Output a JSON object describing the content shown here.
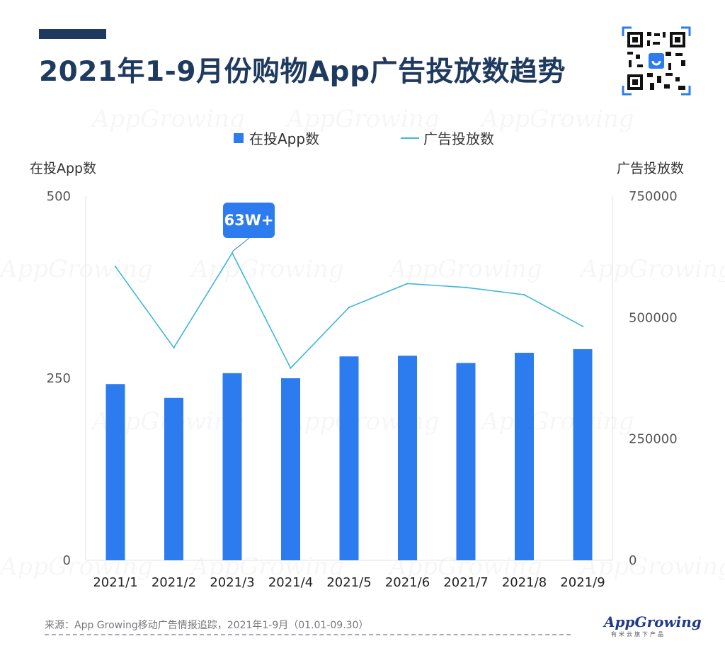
{
  "title": "2021年1-9月份购物App广告投放数趋势",
  "legend": {
    "bar_label": "在投App数",
    "line_label": "广告投放数"
  },
  "left_axis_title": "在投App数",
  "right_axis_title": "广告投放数",
  "callout": "63W+",
  "source": "来源：App Growing移动广告情报追踪，2021年1-9月（01.01-09.30）",
  "brand": {
    "logo": "AppGrowing",
    "sub": "有米云旗下产品"
  },
  "watermark": "AppGrowing",
  "colors": {
    "bar": "#2c7cf0",
    "line": "#3fb7d8",
    "title": "#1f3a5f"
  },
  "chart_data": {
    "type": "bar",
    "categories": [
      "2021/1",
      "2021/2",
      "2021/3",
      "2021/4",
      "2021/5",
      "2021/6",
      "2021/7",
      "2021/8",
      "2021/9"
    ],
    "series": [
      {
        "name": "在投App数",
        "type": "bar",
        "axis": "left",
        "values": [
          242,
          223,
          257,
          250,
          280,
          281,
          271,
          285,
          290
        ]
      },
      {
        "name": "广告投放数",
        "type": "line",
        "axis": "right",
        "values": [
          605000,
          438000,
          633000,
          396000,
          521000,
          570000,
          562000,
          547000,
          482000
        ]
      }
    ],
    "y_left": {
      "min": 0,
      "max": 500,
      "ticks": [
        "0",
        "250",
        "500"
      ]
    },
    "y_right": {
      "min": 0,
      "max": 750000,
      "ticks": [
        "0",
        "250000",
        "500000",
        "750000"
      ]
    },
    "grid": false,
    "legend_position": "top-center"
  }
}
